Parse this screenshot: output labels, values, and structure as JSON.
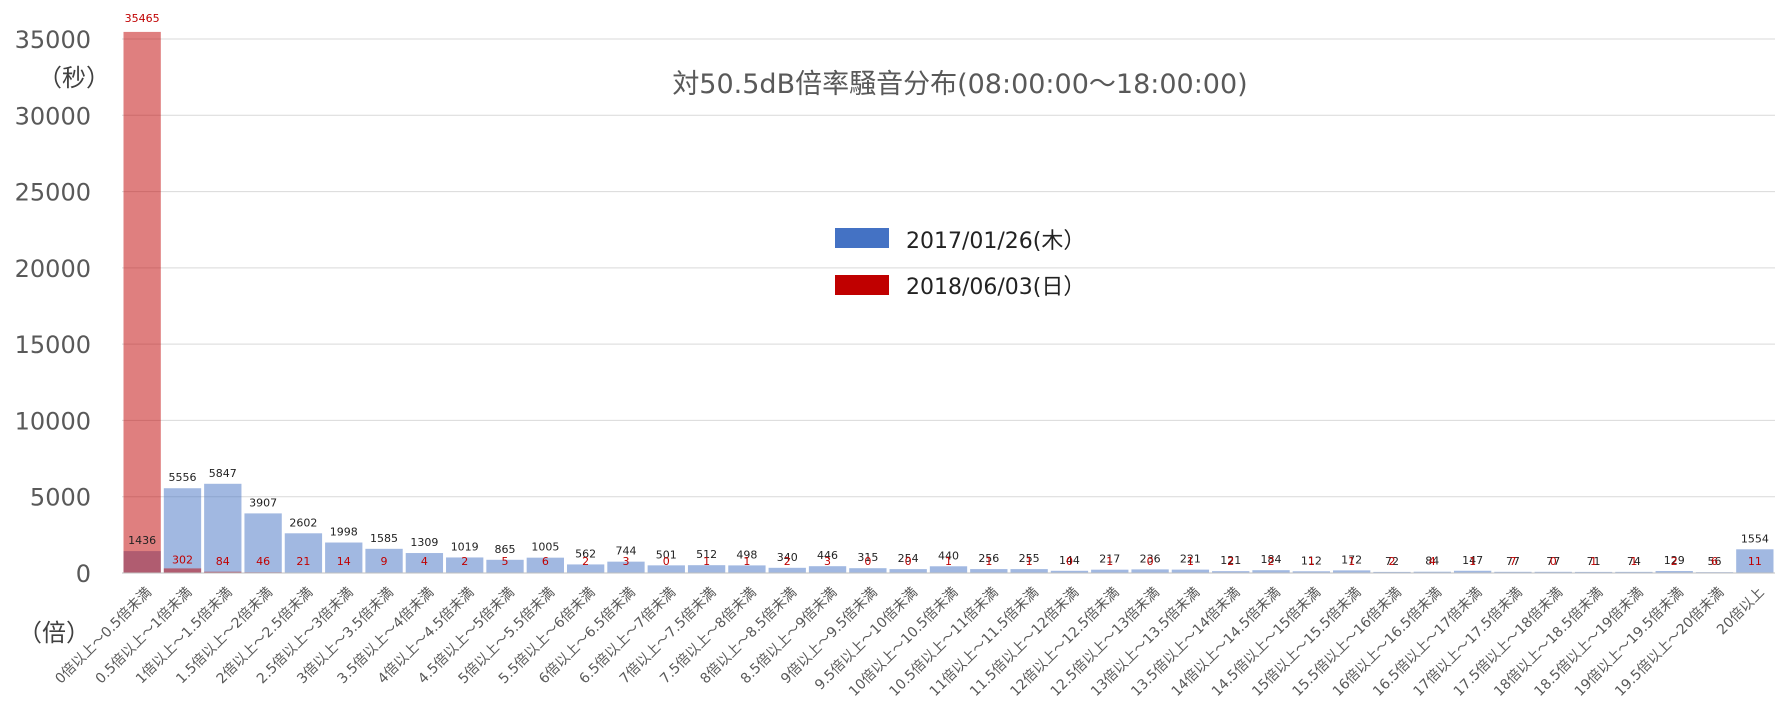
{
  "chart_data": {
    "type": "bar",
    "title": "対50.5dB倍率騒音分布(08:00:00～18:00:00)",
    "ylabel": "（秒）",
    "xlabel": "（倍）",
    "ylim": [
      0,
      35000
    ],
    "yticks": [
      0,
      5000,
      10000,
      15000,
      20000,
      25000,
      30000,
      35000
    ],
    "grid": true,
    "legend_position": "center",
    "categories": [
      "0倍以上～0.5倍未満",
      "0.5倍以上～1倍未満",
      "1倍以上～1.5倍未満",
      "1.5倍以上～2倍未満",
      "2倍以上～2.5倍未満",
      "2.5倍以上～3倍未満",
      "3倍以上～3.5倍未満",
      "3.5倍以上～4倍未満",
      "4倍以上～4.5倍未満",
      "4.5倍以上～5倍未満",
      "5倍以上～5.5倍未満",
      "5.5倍以上～6倍未満",
      "6倍以上～6.5倍未満",
      "6.5倍以上～7倍未満",
      "7倍以上～7.5倍未満",
      "7.5倍以上～8倍未満",
      "8倍以上～8.5倍未満",
      "8.5倍以上～9倍未満",
      "9倍以上～9.5倍未満",
      "9.5倍以上～10倍未満",
      "10倍以上～10.5倍未満",
      "10.5倍以上～11倍未満",
      "11倍以上～11.5倍未満",
      "11.5倍以上～12倍未満",
      "12倍以上～12.5倍未満",
      "12.5倍以上～13倍未満",
      "13倍以上～13.5倍未満",
      "13.5倍以上～14倍未満",
      "14倍以上～14.5倍未満",
      "14.5倍以上～15倍未満",
      "15倍以上～15.5倍未満",
      "15.5倍以上～16倍未満",
      "16倍以上～16.5倍未満",
      "16.5倍以上～17倍未満",
      "17倍以上～17.5倍未満",
      "17.5倍以上～18倍未満",
      "18倍以上～18.5倍未満",
      "18.5倍以上～19倍未満",
      "19倍以上～19.5倍未満",
      "19.5倍以上～20倍未満",
      "20倍以上"
    ],
    "series": [
      {
        "name": "2017/01/26(木）",
        "color": "#4472c4",
        "values": [
          1436,
          5556,
          5847,
          3907,
          2602,
          1998,
          1585,
          1309,
          1019,
          865,
          1005,
          562,
          744,
          501,
          512,
          498,
          340,
          446,
          315,
          254,
          440,
          256,
          255,
          144,
          217,
          236,
          221,
          121,
          184,
          112,
          172,
          72,
          84,
          147,
          77,
          77,
          71,
          74,
          129,
          56,
          1554
        ]
      },
      {
        "name": "2018/06/03(日）",
        "color": "#c00000",
        "values": [
          35465,
          302,
          84,
          46,
          21,
          14,
          9,
          4,
          2,
          5,
          6,
          2,
          3,
          0,
          1,
          1,
          2,
          3,
          0,
          0,
          1,
          1,
          1,
          0,
          1,
          0,
          1,
          2,
          2,
          1,
          1,
          2,
          4,
          1,
          7,
          0,
          1,
          1,
          2,
          6,
          11
        ]
      }
    ]
  }
}
